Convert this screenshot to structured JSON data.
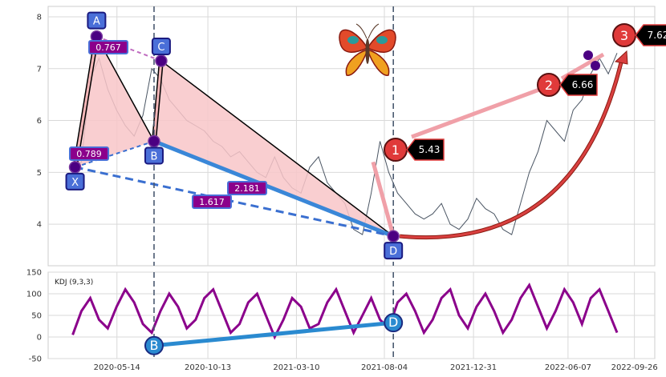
{
  "chart_data": [
    {
      "type": "line",
      "panel": "price",
      "ylim": [
        3.2,
        8.2
      ],
      "yticks": [
        4,
        5,
        6,
        7,
        8
      ],
      "grid": true,
      "series": [
        {
          "values": [
            5.05,
            5.2,
            6.8,
            7.2,
            6.6,
            6.2,
            5.9,
            5.7,
            6.1,
            7.0,
            6.8,
            6.4,
            6.2,
            6.0,
            5.9,
            5.8,
            5.6,
            5.5,
            5.3,
            5.4,
            5.2,
            5.0,
            4.9,
            5.3,
            4.9,
            4.7,
            4.6,
            5.1,
            5.3,
            4.8,
            4.6,
            4.4,
            3.9,
            3.8,
            4.6,
            5.6,
            5.0,
            4.6,
            4.4,
            4.2,
            4.1,
            4.2,
            4.4,
            4.0,
            3.9,
            4.1,
            4.5,
            4.3,
            4.2,
            3.9,
            3.8,
            4.4,
            5.0,
            5.4,
            6.0,
            5.8,
            5.6,
            6.2,
            6.4,
            6.9,
            7.2,
            6.9,
            7.3
          ]
        }
      ],
      "harmonic_points": [
        {
          "label": "X",
          "date": "2020-03-05",
          "price": 5.1
        },
        {
          "label": "A",
          "date": "2020-04-10",
          "price": 7.62
        },
        {
          "label": "B",
          "date": "2020-07-15",
          "price": 5.6
        },
        {
          "label": "C",
          "date": "2020-07-27",
          "price": 7.15
        },
        {
          "label": "D",
          "date": "2021-08-19",
          "price": 3.77
        }
      ],
      "ratios": [
        {
          "value": "0.767",
          "between": [
            "A",
            "C"
          ]
        },
        {
          "value": "0.789",
          "between": [
            "X",
            "B"
          ]
        },
        {
          "value": "2.181",
          "between": [
            "B",
            "D"
          ]
        },
        {
          "value": "1.617",
          "between": [
            "X",
            "D"
          ]
        }
      ],
      "targets": [
        {
          "label": "1",
          "value": "5.43"
        },
        {
          "label": "2",
          "value": "6.66"
        },
        {
          "label": "3",
          "value": "7.62"
        }
      ],
      "vlines": [
        "2020-07-15",
        "2021-08-19"
      ],
      "icon": "butterfly-icon"
    },
    {
      "type": "line",
      "panel": "kdj",
      "title": "KDJ (9,3,3)",
      "ylim": [
        -50,
        150
      ],
      "yticks": [
        -50,
        0,
        50,
        100,
        150
      ],
      "grid": true,
      "series": [
        {
          "values": [
            5,
            60,
            90,
            40,
            20,
            70,
            110,
            80,
            30,
            10,
            60,
            100,
            70,
            20,
            40,
            90,
            110,
            60,
            10,
            30,
            80,
            100,
            50,
            0,
            40,
            90,
            70,
            20,
            30,
            80,
            110,
            60,
            10,
            50,
            90,
            40,
            20,
            80,
            100,
            60,
            10,
            40,
            90,
            110,
            50,
            20,
            70,
            100,
            60,
            10,
            40,
            90,
            120,
            70,
            20,
            60,
            110,
            80,
            30,
            90,
            110,
            60,
            10
          ]
        }
      ],
      "points": [
        {
          "label": "B",
          "date": "2020-07-15",
          "value": -20
        },
        {
          "label": "D",
          "date": "2021-08-19",
          "value": 33
        }
      ]
    }
  ],
  "x_axis": {
    "ticks": [
      "2020-05-14",
      "2020-10-13",
      "2021-03-10",
      "2021-08-04",
      "2021-12-31",
      "2022-06-07",
      "2022-09-26"
    ],
    "xlim": [
      "2020-01-20",
      "2022-10-30"
    ]
  },
  "colors": {
    "price_line": "#4a5563",
    "kdj_line": "#8b008b",
    "xab": "#f4b6b8",
    "triangle_fill": "#f8c6c8",
    "blue_solid": "#3a87d8",
    "blue_dashed": "#3a6fd0",
    "projection": "#f0a0a8",
    "arc": "#d94040",
    "badge": "#e03a3a",
    "point_purple": "#4b0082",
    "label_box": "#4a6fd8",
    "ratio_box": "#8b008b"
  }
}
